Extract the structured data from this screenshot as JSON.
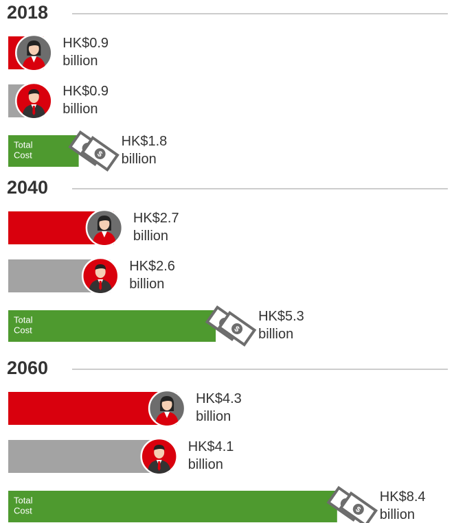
{
  "chart_data": {
    "type": "bar",
    "categories": [
      "2018",
      "2040",
      "2060"
    ],
    "series": [
      {
        "color": "#d9000d",
        "icon": "female",
        "values": [
          0.9,
          2.7,
          4.3
        ],
        "value_labels": [
          "HK$0.9 billion",
          "HK$2.7 billion",
          "HK$4.3 billion"
        ]
      },
      {
        "color": "#a3a3a3",
        "icon": "male",
        "values": [
          0.9,
          2.6,
          4.1
        ],
        "value_labels": [
          "HK$0.9 billion",
          "HK$2.6 billion",
          "HK$4.1 billion"
        ]
      },
      {
        "name": "Total Cost",
        "color": "#4e9a2f",
        "icon": "money",
        "values": [
          1.8,
          5.3,
          8.4
        ],
        "value_labels": [
          "HK$1.8 billion",
          "HK$5.3 billion",
          "HK$8.4 billion"
        ]
      }
    ]
  }
}
